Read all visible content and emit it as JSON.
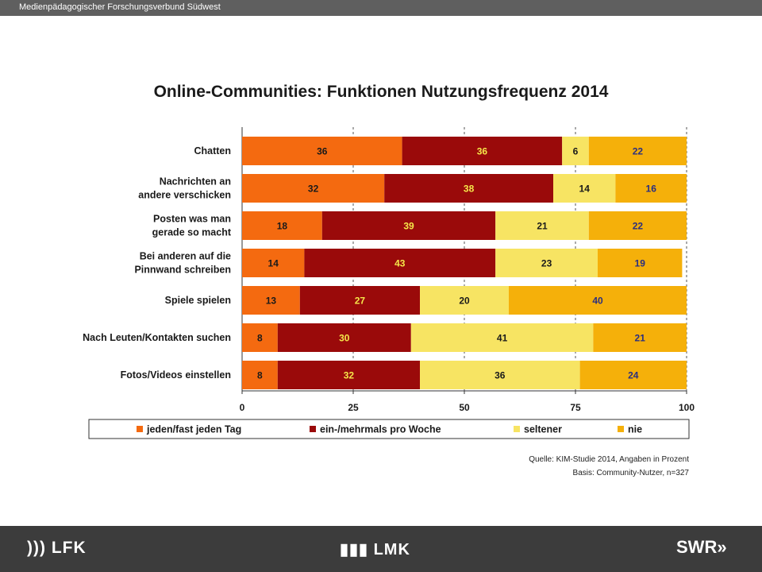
{
  "header": {
    "org": "Medienpädagogischer Forschungsverbund Südwest"
  },
  "chart_data": {
    "type": "bar",
    "orientation": "horizontal",
    "stacked": true,
    "title": "Online-Communities: Funktionen Nutzungsfrequenz 2014",
    "categories": [
      [
        "Chatten"
      ],
      [
        "Nachrichten an",
        "andere verschicken"
      ],
      [
        "Posten was man",
        "gerade so macht"
      ],
      [
        "Bei anderen auf die",
        "Pinnwand schreiben"
      ],
      [
        "Spiele spielen"
      ],
      [
        "Nach Leuten/Kontakten suchen"
      ],
      [
        "Fotos/Videos einstellen"
      ]
    ],
    "series": [
      {
        "name": "jeden/fast jeden Tag",
        "color": "#f46a10",
        "label_color": "#1a1a1a",
        "values": [
          36,
          32,
          18,
          14,
          13,
          8,
          8
        ]
      },
      {
        "name": "ein-/mehrmals pro Woche",
        "color": "#9a0a0a",
        "label_color": "#f5e64a",
        "values": [
          36,
          38,
          39,
          43,
          27,
          30,
          32
        ]
      },
      {
        "name": "seltener",
        "color": "#f7e463",
        "label_color": "#1a1a1a",
        "values": [
          6,
          14,
          21,
          23,
          20,
          41,
          36
        ]
      },
      {
        "name": "nie",
        "color": "#f5b00a",
        "label_color": "#2a2f80",
        "values": [
          22,
          16,
          22,
          19,
          40,
          21,
          24
        ]
      }
    ],
    "xlim": [
      0,
      100
    ],
    "xticks": [
      0,
      25,
      50,
      75,
      100
    ],
    "grid": "vertical dashed",
    "legend": "bottom",
    "source_lines": [
      "Quelle: KIM-Studie 2014, Angaben in Prozent",
      "Basis: Community-Nutzer, n=327"
    ]
  },
  "footer": {
    "logo_left": "LFK",
    "logo_center": "LMK",
    "logo_right": "SWR"
  }
}
